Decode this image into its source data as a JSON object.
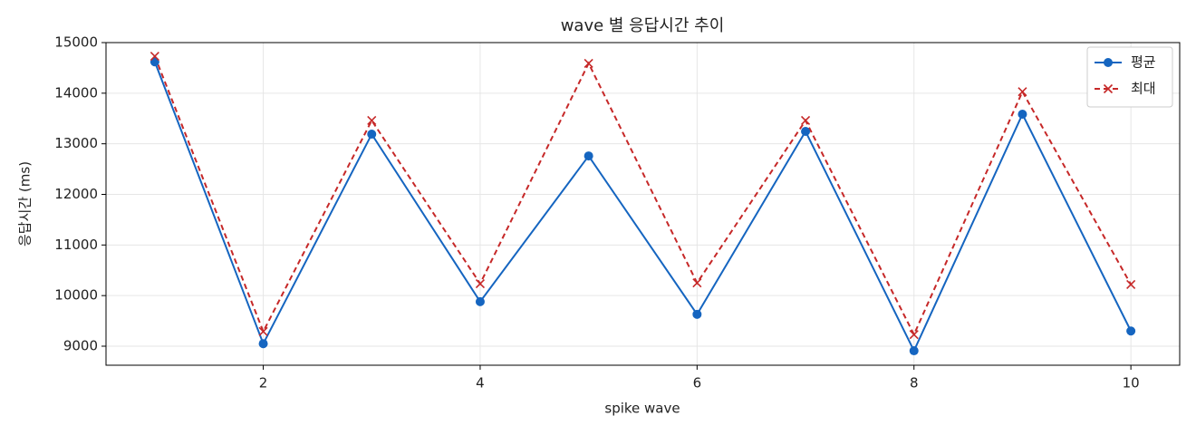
{
  "chart_data": {
    "type": "line",
    "title": "wave 별 응답시간 추이",
    "x_label": "spike wave",
    "y_label": "응답시간 (ms)",
    "x": [
      1,
      2,
      3,
      4,
      5,
      6,
      7,
      8,
      9,
      10
    ],
    "series": [
      {
        "name": "평균",
        "color": "#1565c0",
        "marker": "o",
        "dash": false,
        "values": [
          14620,
          9050,
          13190,
          9880,
          12760,
          9630,
          13245,
          8910,
          13585,
          9300
        ]
      },
      {
        "name": "최대",
        "color": "#c62828",
        "marker": "x",
        "dash": true,
        "values": [
          14730,
          9290,
          13460,
          10235,
          14590,
          10250,
          13460,
          9230,
          14030,
          10220
        ]
      }
    ],
    "xlim": [
      0.55,
      10.45
    ],
    "ylim": [
      8624,
      15000
    ],
    "xticks": [
      2,
      4,
      6,
      8,
      10
    ],
    "yticks": [
      9000,
      10000,
      11000,
      12000,
      13000,
      14000,
      15000
    ],
    "grid": true,
    "legend": "upper right"
  }
}
